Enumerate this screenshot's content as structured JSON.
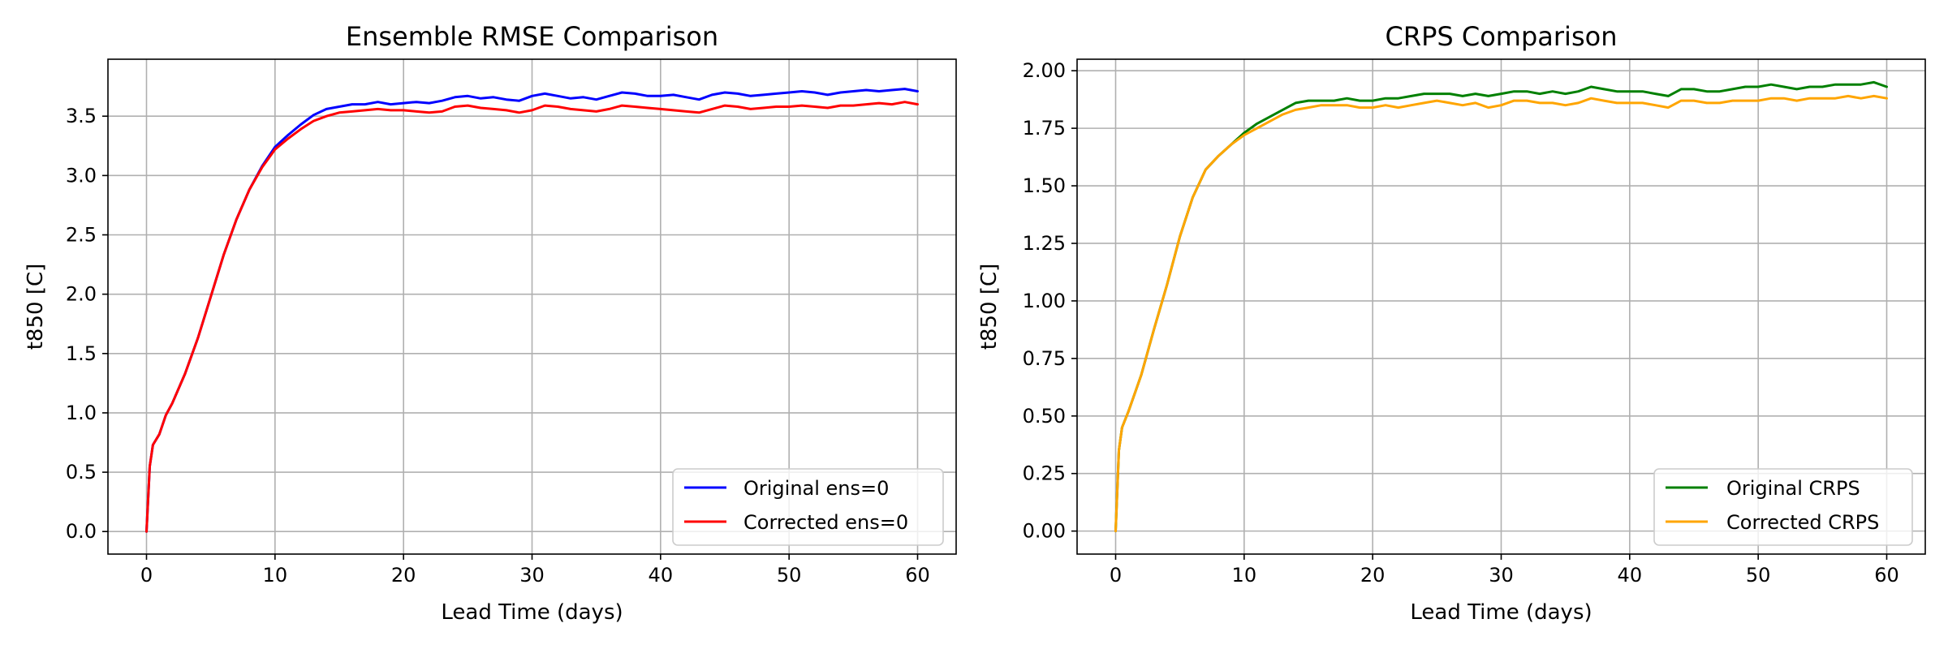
{
  "chart_data": [
    {
      "type": "line",
      "title": "Ensemble RMSE Comparison",
      "xlabel": "Lead Time (days)",
      "ylabel": "t850 [C]",
      "xlim": [
        -3,
        63
      ],
      "ylim": [
        -0.19,
        3.98
      ],
      "xticks": [
        0,
        10,
        20,
        30,
        40,
        50,
        60
      ],
      "yticks": [
        0.0,
        0.5,
        1.0,
        1.5,
        2.0,
        2.5,
        3.0,
        3.5
      ],
      "tick_decimals": 1,
      "grid": true,
      "legend_position": "lower right",
      "series": [
        {
          "name": "Original ens=0",
          "color": "#0000ff",
          "x": [
            0,
            0.25,
            0.5,
            1,
            1.5,
            2,
            3,
            4,
            5,
            6,
            7,
            8,
            9,
            10,
            11,
            12,
            13,
            14,
            15,
            16,
            17,
            18,
            19,
            20,
            21,
            22,
            23,
            24,
            25,
            26,
            27,
            28,
            29,
            30,
            31,
            32,
            33,
            34,
            35,
            36,
            37,
            38,
            39,
            40,
            41,
            42,
            43,
            44,
            45,
            46,
            47,
            48,
            49,
            50,
            51,
            52,
            53,
            54,
            55,
            56,
            57,
            58,
            59,
            60
          ],
          "y": [
            0.0,
            0.55,
            0.73,
            0.82,
            0.98,
            1.08,
            1.33,
            1.63,
            1.98,
            2.33,
            2.63,
            2.88,
            3.08,
            3.24,
            3.34,
            3.43,
            3.51,
            3.56,
            3.58,
            3.6,
            3.6,
            3.62,
            3.6,
            3.61,
            3.62,
            3.61,
            3.63,
            3.66,
            3.67,
            3.65,
            3.66,
            3.64,
            3.63,
            3.67,
            3.69,
            3.67,
            3.65,
            3.66,
            3.64,
            3.67,
            3.7,
            3.69,
            3.67,
            3.67,
            3.68,
            3.66,
            3.64,
            3.68,
            3.7,
            3.69,
            3.67,
            3.68,
            3.69,
            3.7,
            3.71,
            3.7,
            3.68,
            3.7,
            3.71,
            3.72,
            3.71,
            3.72,
            3.73,
            3.71
          ]
        },
        {
          "name": "Corrected ens=0",
          "color": "#ff0000",
          "x": [
            0,
            0.25,
            0.5,
            1,
            1.5,
            2,
            3,
            4,
            5,
            6,
            7,
            8,
            9,
            10,
            11,
            12,
            13,
            14,
            15,
            16,
            17,
            18,
            19,
            20,
            21,
            22,
            23,
            24,
            25,
            26,
            27,
            28,
            29,
            30,
            31,
            32,
            33,
            34,
            35,
            36,
            37,
            38,
            39,
            40,
            41,
            42,
            43,
            44,
            45,
            46,
            47,
            48,
            49,
            50,
            51,
            52,
            53,
            54,
            55,
            56,
            57,
            58,
            59,
            60
          ],
          "y": [
            0.0,
            0.55,
            0.73,
            0.82,
            0.98,
            1.08,
            1.33,
            1.63,
            1.98,
            2.33,
            2.63,
            2.88,
            3.07,
            3.22,
            3.31,
            3.39,
            3.46,
            3.5,
            3.53,
            3.54,
            3.55,
            3.56,
            3.55,
            3.55,
            3.54,
            3.53,
            3.54,
            3.58,
            3.59,
            3.57,
            3.56,
            3.55,
            3.53,
            3.55,
            3.59,
            3.58,
            3.56,
            3.55,
            3.54,
            3.56,
            3.59,
            3.58,
            3.57,
            3.56,
            3.55,
            3.54,
            3.53,
            3.56,
            3.59,
            3.58,
            3.56,
            3.57,
            3.58,
            3.58,
            3.59,
            3.58,
            3.57,
            3.59,
            3.59,
            3.6,
            3.61,
            3.6,
            3.62,
            3.6
          ]
        }
      ]
    },
    {
      "type": "line",
      "title": "CRPS Comparison",
      "xlabel": "Lead Time (days)",
      "ylabel": "t850 [C]",
      "xlim": [
        -3,
        63
      ],
      "ylim": [
        -0.1,
        2.05
      ],
      "xticks": [
        0,
        10,
        20,
        30,
        40,
        50,
        60
      ],
      "yticks": [
        0.0,
        0.25,
        0.5,
        0.75,
        1.0,
        1.25,
        1.5,
        1.75,
        2.0
      ],
      "tick_decimals": 2,
      "grid": true,
      "legend_position": "lower right",
      "series": [
        {
          "name": "Original CRPS",
          "color": "#008000",
          "x": [
            0,
            0.25,
            0.5,
            1,
            1.5,
            2,
            3,
            4,
            5,
            6,
            7,
            8,
            9,
            10,
            11,
            12,
            13,
            14,
            15,
            16,
            17,
            18,
            19,
            20,
            21,
            22,
            23,
            24,
            25,
            26,
            27,
            28,
            29,
            30,
            31,
            32,
            33,
            34,
            35,
            36,
            37,
            38,
            39,
            40,
            41,
            42,
            43,
            44,
            45,
            46,
            47,
            48,
            49,
            50,
            51,
            52,
            53,
            54,
            55,
            56,
            57,
            58,
            59,
            60
          ],
          "y": [
            0.0,
            0.35,
            0.45,
            0.52,
            0.6,
            0.68,
            0.88,
            1.07,
            1.28,
            1.45,
            1.57,
            1.63,
            1.68,
            1.73,
            1.77,
            1.8,
            1.83,
            1.86,
            1.87,
            1.87,
            1.87,
            1.88,
            1.87,
            1.87,
            1.88,
            1.88,
            1.89,
            1.9,
            1.9,
            1.9,
            1.89,
            1.9,
            1.89,
            1.9,
            1.91,
            1.91,
            1.9,
            1.91,
            1.9,
            1.91,
            1.93,
            1.92,
            1.91,
            1.91,
            1.91,
            1.9,
            1.89,
            1.92,
            1.92,
            1.91,
            1.91,
            1.92,
            1.93,
            1.93,
            1.94,
            1.93,
            1.92,
            1.93,
            1.93,
            1.94,
            1.94,
            1.94,
            1.95,
            1.93
          ]
        },
        {
          "name": "Corrected CRPS",
          "color": "#ffa500",
          "x": [
            0,
            0.25,
            0.5,
            1,
            1.5,
            2,
            3,
            4,
            5,
            6,
            7,
            8,
            9,
            10,
            11,
            12,
            13,
            14,
            15,
            16,
            17,
            18,
            19,
            20,
            21,
            22,
            23,
            24,
            25,
            26,
            27,
            28,
            29,
            30,
            31,
            32,
            33,
            34,
            35,
            36,
            37,
            38,
            39,
            40,
            41,
            42,
            43,
            44,
            45,
            46,
            47,
            48,
            49,
            50,
            51,
            52,
            53,
            54,
            55,
            56,
            57,
            58,
            59,
            60
          ],
          "y": [
            0.0,
            0.35,
            0.45,
            0.52,
            0.6,
            0.68,
            0.88,
            1.07,
            1.28,
            1.45,
            1.57,
            1.63,
            1.68,
            1.72,
            1.75,
            1.78,
            1.81,
            1.83,
            1.84,
            1.85,
            1.85,
            1.85,
            1.84,
            1.84,
            1.85,
            1.84,
            1.85,
            1.86,
            1.87,
            1.86,
            1.85,
            1.86,
            1.84,
            1.85,
            1.87,
            1.87,
            1.86,
            1.86,
            1.85,
            1.86,
            1.88,
            1.87,
            1.86,
            1.86,
            1.86,
            1.85,
            1.84,
            1.87,
            1.87,
            1.86,
            1.86,
            1.87,
            1.87,
            1.87,
            1.88,
            1.88,
            1.87,
            1.88,
            1.88,
            1.88,
            1.89,
            1.88,
            1.89,
            1.88
          ]
        }
      ]
    }
  ]
}
